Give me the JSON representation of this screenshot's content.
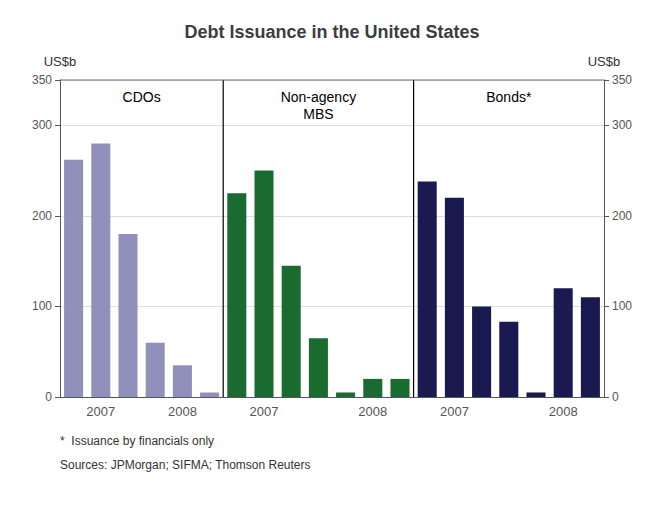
{
  "chart_data": {
    "type": "bar",
    "title": "Debt Issuance in the United States",
    "ylabel": "US$b",
    "y2label": "US$b",
    "categories": [
      null,
      "2007",
      null,
      null,
      "2008",
      null,
      null,
      "2007",
      null,
      null,
      null,
      "2008",
      null,
      null,
      "2007",
      null,
      null,
      null,
      "2008",
      null
    ],
    "series": [
      {
        "name": "CDOs",
        "color": "#9090bb",
        "values": [
          262,
          280,
          180,
          60,
          35,
          5,
          null,
          null,
          null,
          null,
          null,
          null,
          null,
          null,
          null,
          null,
          null,
          null,
          null,
          null
        ]
      },
      {
        "name": "Non-agency\nMBS",
        "color": "#1a6b30",
        "values": [
          null,
          null,
          null,
          null,
          null,
          null,
          225,
          250,
          145,
          65,
          5,
          20,
          20,
          null,
          null,
          null,
          null,
          null,
          null,
          null
        ]
      },
      {
        "name": "Bonds*",
        "color": "#1a1a50",
        "values": [
          null,
          null,
          null,
          null,
          null,
          null,
          null,
          null,
          null,
          null,
          null,
          null,
          null,
          238,
          220,
          100,
          83,
          5,
          120,
          110
        ]
      }
    ],
    "ylim": [
      0,
      350
    ],
    "yticks": [
      0,
      100,
      200,
      300
    ],
    "y2lim": [
      0,
      350
    ],
    "y2ticks": [
      0,
      100,
      200,
      300
    ],
    "grid": true,
    "footnotes": [
      "*  Issuance by financials only",
      "Sources: JPMorgan; SIFMA; Thomson Reuters"
    ]
  }
}
